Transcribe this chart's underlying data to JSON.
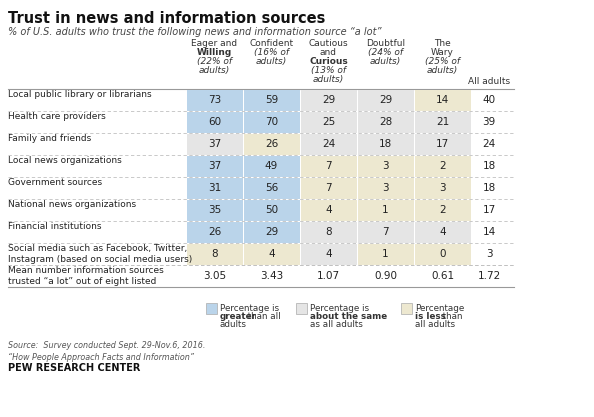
{
  "title": "Trust in news and information sources",
  "subtitle": "% of U.S. adults who trust the following news and information source “a lot”",
  "col_headers_line1": [
    "Eager and",
    "Confident",
    "Cautious",
    "Doubtful",
    "The",
    ""
  ],
  "col_headers_line2": [
    "Willing",
    "(16% of",
    "and",
    "(24% of",
    "Wary",
    ""
  ],
  "col_headers_line3": [
    "(22% of",
    "adults)",
    "Curious",
    "adults)",
    "(25% of",
    ""
  ],
  "col_headers_line4": [
    "adults)",
    "",
    "(13% of",
    "",
    "adults)",
    "All adults"
  ],
  "col_headers_line5": [
    "",
    "",
    "adults)",
    "",
    "",
    ""
  ],
  "rows": [
    {
      "label": "Local public library or librarians",
      "values": [
        73,
        59,
        29,
        29,
        14,
        40
      ],
      "colors": [
        "blue",
        "blue",
        "neutral",
        "neutral",
        "yellow",
        "none"
      ]
    },
    {
      "label": "Health care providers",
      "values": [
        60,
        70,
        25,
        28,
        21,
        39
      ],
      "colors": [
        "blue",
        "blue",
        "neutral",
        "neutral",
        "neutral",
        "none"
      ]
    },
    {
      "label": "Family and friends",
      "values": [
        37,
        26,
        24,
        18,
        17,
        24
      ],
      "colors": [
        "neutral",
        "yellow",
        "neutral",
        "neutral",
        "neutral",
        "none"
      ]
    },
    {
      "label": "Local news organizations",
      "values": [
        37,
        49,
        7,
        3,
        2,
        18
      ],
      "colors": [
        "blue",
        "blue",
        "yellow",
        "yellow",
        "yellow",
        "none"
      ]
    },
    {
      "label": "Government sources",
      "values": [
        31,
        56,
        7,
        3,
        3,
        18
      ],
      "colors": [
        "blue",
        "blue",
        "yellow",
        "yellow",
        "yellow",
        "none"
      ]
    },
    {
      "label": "National news organizations",
      "values": [
        35,
        50,
        4,
        1,
        2,
        17
      ],
      "colors": [
        "blue",
        "blue",
        "yellow",
        "yellow",
        "yellow",
        "none"
      ]
    },
    {
      "label": "Financial institutions",
      "values": [
        26,
        29,
        8,
        7,
        4,
        14
      ],
      "colors": [
        "blue",
        "blue",
        "neutral",
        "neutral",
        "neutral",
        "none"
      ]
    },
    {
      "label": "Social media such as Facebook, Twitter,\nInstagram (based on social media users)",
      "values": [
        8,
        4,
        4,
        1,
        0,
        3
      ],
      "colors": [
        "yellow",
        "yellow",
        "neutral",
        "yellow",
        "yellow",
        "none"
      ]
    }
  ],
  "mean_row_label": "Mean number information sources\ntrusted “a lot” out of eight listed",
  "mean_values": [
    "3.05",
    "3.43",
    "1.07",
    "0.90",
    "0.61",
    "1.72"
  ],
  "source_text": "Source:  Survey conducted Sept. 29-Nov.6, 2016.\n“How People Approach Facts and Information”",
  "pew_text": "PEW RESEARCH CENTER",
  "color_blue": "#bad4ea",
  "color_yellow": "#ede8d0",
  "color_neutral": "#e5e5e5",
  "color_none": "#ffffff",
  "bg_color": "#ffffff"
}
